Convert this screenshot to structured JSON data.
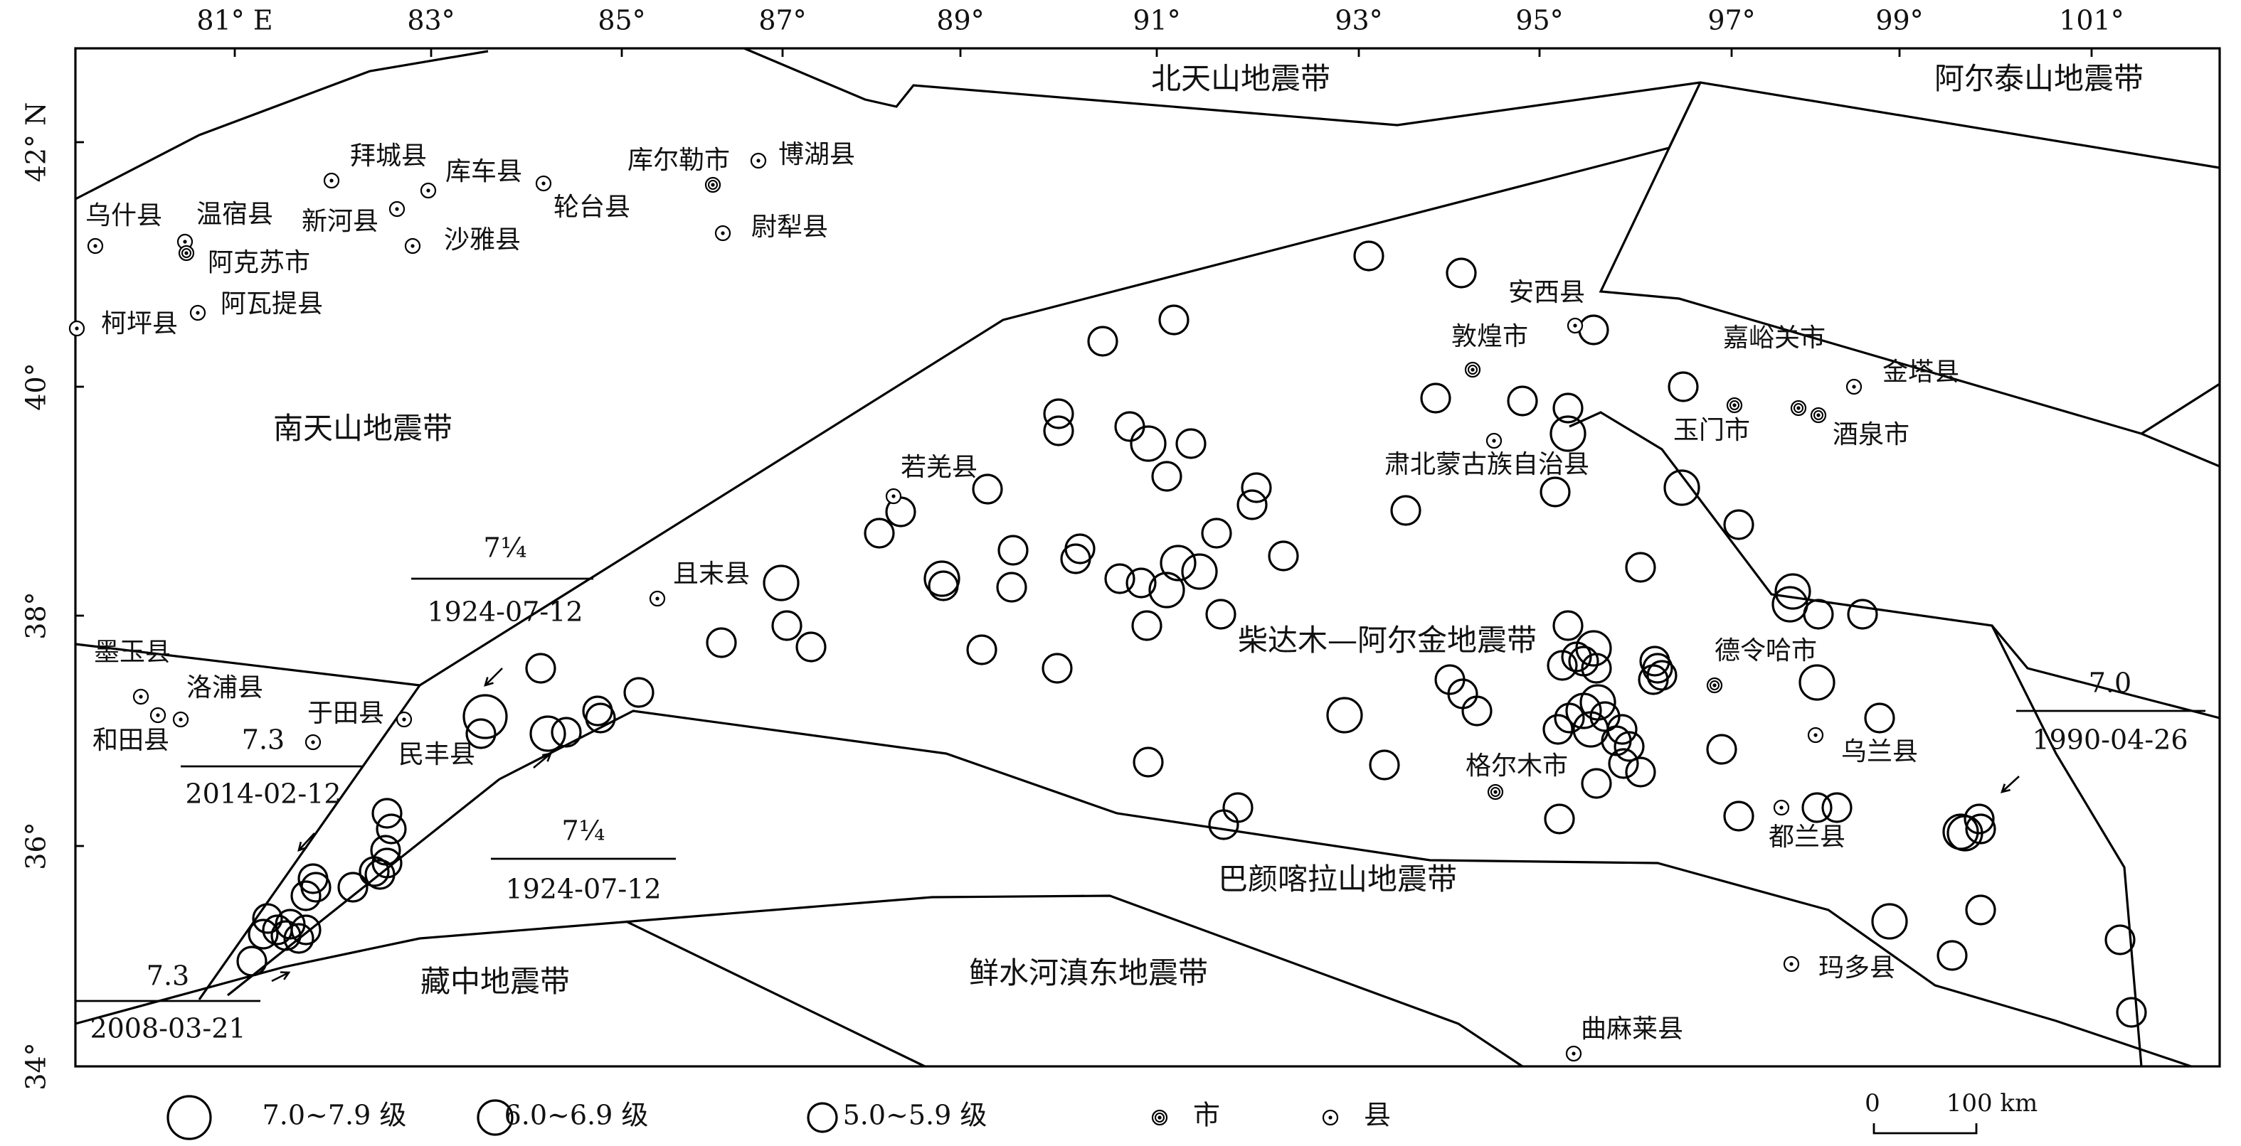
{
  "lon_labels": [
    "81° E",
    "83°",
    "85°",
    "87°",
    "89°",
    "91°",
    "93°",
    "95°",
    "97°",
    "99°",
    "101°"
  ],
  "lat_labels": [
    "42° N",
    "40°",
    "38°",
    "36°",
    "34°"
  ],
  "zones": [
    "北天山地震带",
    "阿尔泰山地震带",
    "南天山地震带",
    "柴达木—阿尔金地震带",
    "巴颜喀拉山地震带",
    "藏中地震带",
    "鲜水河滇东地震带"
  ],
  "places": [
    {
      "name": "乌什县",
      "symbol": "county"
    },
    {
      "name": "温宿县",
      "symbol": "county"
    },
    {
      "name": "阿克苏市",
      "symbol": "city"
    },
    {
      "name": "柯坪县",
      "symbol": "county"
    },
    {
      "name": "阿瓦提县",
      "symbol": "county"
    },
    {
      "name": "拜城县",
      "symbol": "county"
    },
    {
      "name": "新河县",
      "symbol": "county"
    },
    {
      "name": "库车县",
      "symbol": "county"
    },
    {
      "name": "沙雅县",
      "symbol": "county"
    },
    {
      "name": "轮台县",
      "symbol": "county"
    },
    {
      "name": "库尔勒市",
      "symbol": "city"
    },
    {
      "name": "博湖县",
      "symbol": "county"
    },
    {
      "name": "尉犁县",
      "symbol": "county"
    },
    {
      "name": "安西县",
      "symbol": "county"
    },
    {
      "name": "敦煌市",
      "symbol": "city"
    },
    {
      "name": "嘉峪关市",
      "symbol": "city"
    },
    {
      "name": "玉门市",
      "symbol": "city"
    },
    {
      "name": "金塔县",
      "symbol": "county"
    },
    {
      "name": "酒泉市",
      "symbol": "city"
    },
    {
      "name": "肃北蒙古族自治县",
      "symbol": "county"
    },
    {
      "name": "若羌县",
      "symbol": "county"
    },
    {
      "name": "且末县",
      "symbol": "county"
    },
    {
      "name": "德令哈市",
      "symbol": "city"
    },
    {
      "name": "乌兰县",
      "symbol": "county"
    },
    {
      "name": "格尔木市",
      "symbol": "city"
    },
    {
      "name": "都兰县",
      "symbol": "county"
    },
    {
      "name": "玛多县",
      "symbol": "county"
    },
    {
      "name": "曲麻莱县",
      "symbol": "county"
    },
    {
      "name": "墨玉县",
      "symbol": "county"
    },
    {
      "name": "洛浦县",
      "symbol": "county"
    },
    {
      "name": "和田县",
      "symbol": "county"
    },
    {
      "name": "于田县",
      "symbol": "county"
    },
    {
      "name": "民丰县",
      "symbol": "county"
    }
  ],
  "annotations": [
    {
      "magnitude": "7¼",
      "date": "1924-07-12"
    },
    {
      "magnitude": "7¼",
      "date": "1924-07-12"
    },
    {
      "magnitude": "7.3",
      "date": "2014-02-12"
    },
    {
      "magnitude": "7.3",
      "date": "2008-03-21"
    },
    {
      "magnitude": "7.0",
      "date": "1990-04-26"
    }
  ],
  "legend": [
    "7.0~7.9 级",
    "6.0~6.9 级",
    "5.0~5.9 级",
    "市",
    "县"
  ],
  "scale": {
    "zero": "0",
    "length": "100 km"
  }
}
